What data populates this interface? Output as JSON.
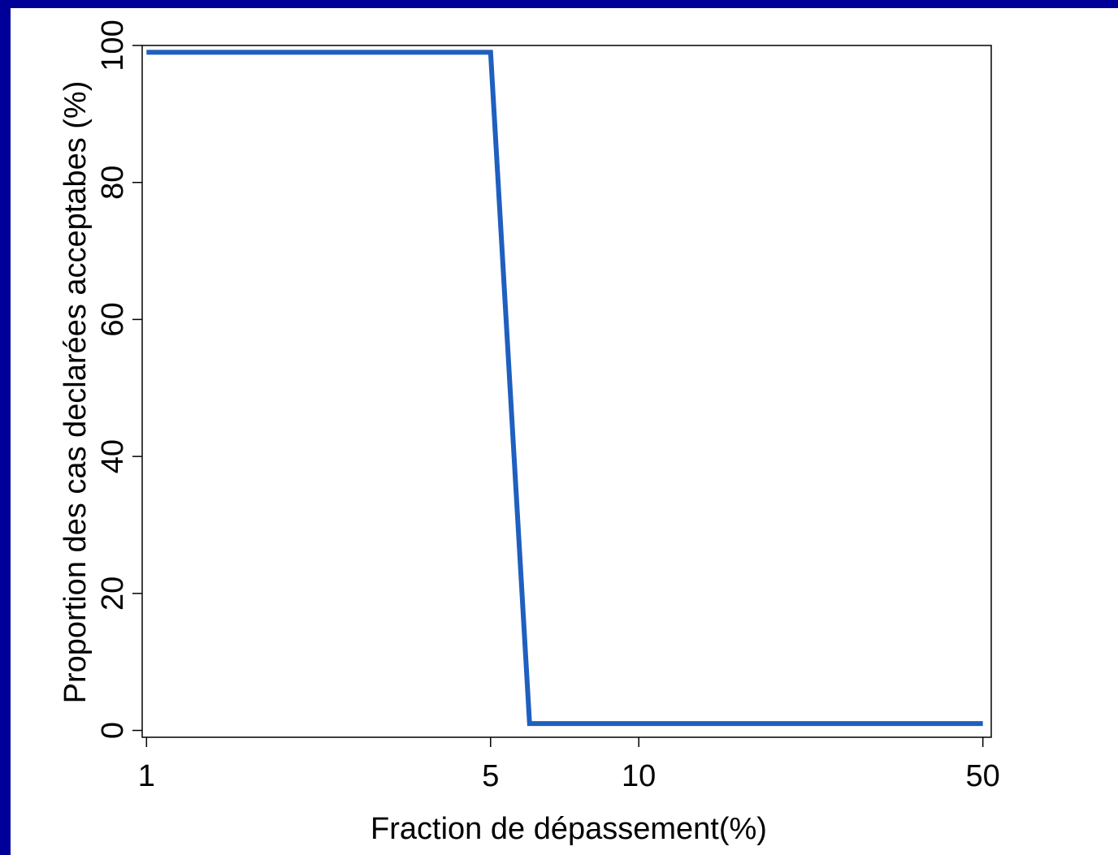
{
  "chart_data": {
    "type": "line",
    "title": "",
    "xlabel": "Fraction de dépassement(%)",
    "ylabel": "Proportion des cas declarées acceptabes (%)",
    "x_scale": "log",
    "xlim": [
      0.98,
      52
    ],
    "ylim": [
      -1,
      100
    ],
    "x_ticks": [
      1,
      5,
      10,
      50
    ],
    "x_tick_labels": [
      "1",
      "5",
      "10",
      "50"
    ],
    "y_ticks": [
      0,
      20,
      40,
      60,
      80,
      100
    ],
    "y_tick_labels": [
      "0",
      "20",
      "40",
      "60",
      "80",
      "100"
    ],
    "grid": false,
    "legend": "none",
    "series": [
      {
        "color": "#1f5fbf",
        "x": [
          1,
          5,
          6,
          50
        ],
        "y": [
          99,
          99,
          1,
          1
        ]
      }
    ]
  },
  "frame": {
    "border_color": "#000099",
    "background": "#ffffff"
  }
}
